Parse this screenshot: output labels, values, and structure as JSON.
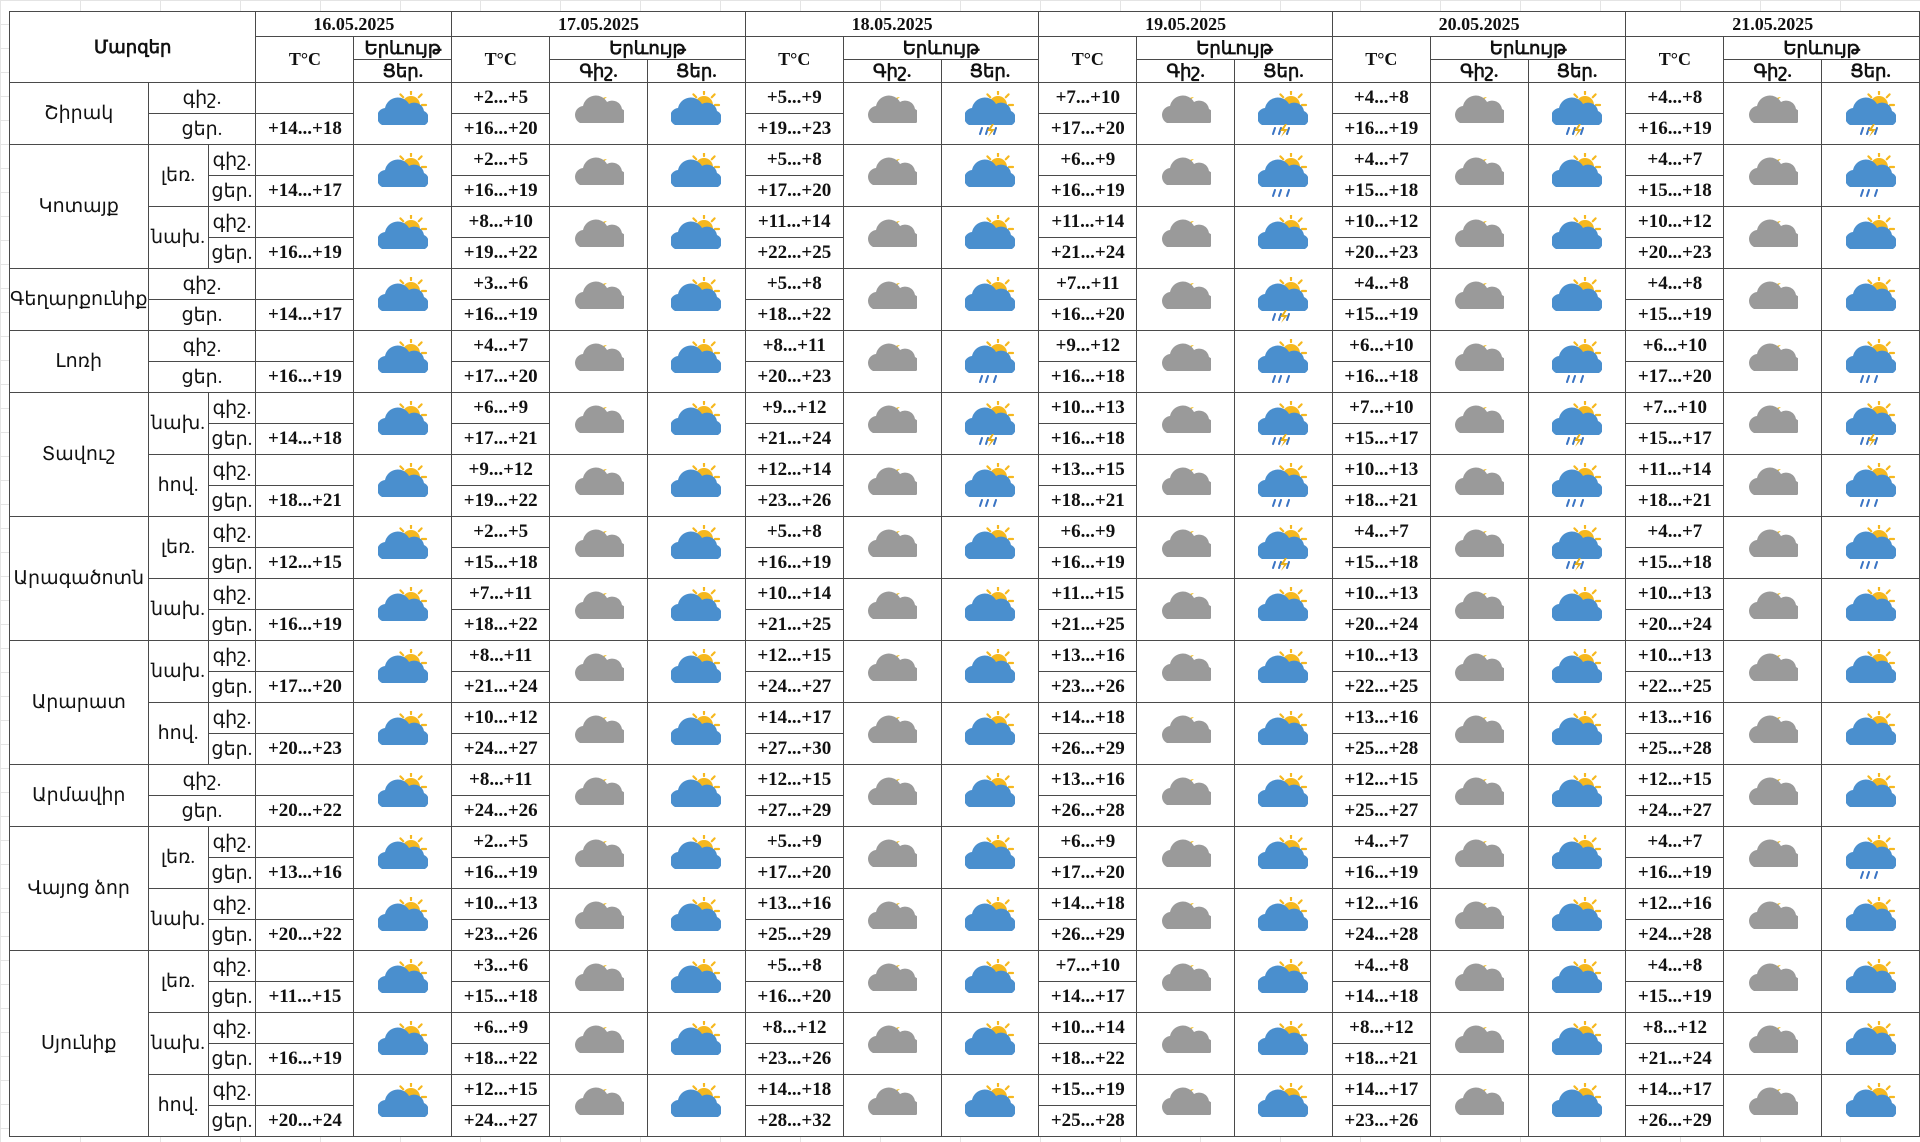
{
  "table": {
    "corner": "Մարզեր",
    "dates": [
      "16.05.2025",
      "17.05.2025",
      "18.05.2025",
      "19.05.2025",
      "20.05.2025",
      "21.05.2025"
    ],
    "temp_header": "T°C",
    "phen_header": "Երևույթ",
    "night_short": "Գիշ.",
    "day_short": "Ցեր.",
    "night_row": "գիշ.",
    "day_row": "ցեր."
  },
  "regions": [
    {
      "name": "Շիրակ",
      "zones": [
        {
          "zone": "",
          "temps": [
            [
              "",
              "+14...+18"
            ],
            [
              "+2...+5",
              "+16...+20"
            ],
            [
              "+5...+9",
              "+19...+23"
            ],
            [
              "+7...+10",
              "+17...+20"
            ],
            [
              "+4...+8",
              "+16...+19"
            ],
            [
              "+4...+8",
              "+16...+19"
            ]
          ],
          "wx": [
            "partly-cloudy-sun",
            "cloud-moon",
            "partly-cloudy-sun",
            "cloud-moon",
            "thunderstorm-sun",
            "cloud-moon",
            "thunderstorm-sun",
            "cloud-moon",
            "thunderstorm-sun",
            "cloud-moon",
            "thunderstorm-sun"
          ]
        }
      ]
    },
    {
      "name": "Կոտայք",
      "zones": [
        {
          "zone": "լեռ.",
          "temps": [
            [
              "",
              "+14...+17"
            ],
            [
              "+2...+5",
              "+16...+19"
            ],
            [
              "+5...+8",
              "+17...+20"
            ],
            [
              "+6...+9",
              "+16...+19"
            ],
            [
              "+4...+7",
              "+15...+18"
            ],
            [
              "+4...+7",
              "+15...+18"
            ]
          ],
          "wx": [
            "partly-cloudy-sun",
            "cloud-moon",
            "partly-cloudy-sun",
            "cloud-moon",
            "partly-cloudy-sun",
            "cloud-moon",
            "rain-sun",
            "cloud-moon",
            "partly-cloudy-sun",
            "cloud-moon",
            "rain-sun"
          ]
        },
        {
          "zone": "նախ.",
          "temps": [
            [
              "",
              "+16...+19"
            ],
            [
              "+8...+10",
              "+19...+22"
            ],
            [
              "+11...+14",
              "+22...+25"
            ],
            [
              "+11...+14",
              "+21...+24"
            ],
            [
              "+10...+12",
              "+20...+23"
            ],
            [
              "+10...+12",
              "+20...+23"
            ]
          ],
          "wx": [
            "partly-cloudy-sun",
            "cloud-moon",
            "partly-cloudy-sun",
            "cloud-moon",
            "partly-cloudy-sun",
            "cloud-moon",
            "partly-cloudy-sun",
            "cloud-moon",
            "partly-cloudy-sun",
            "cloud-moon",
            "partly-cloudy-sun"
          ]
        }
      ]
    },
    {
      "name": "Գեղարքունիք",
      "zones": [
        {
          "zone": "",
          "temps": [
            [
              "",
              "+14...+17"
            ],
            [
              "+3...+6",
              "+16...+19"
            ],
            [
              "+5...+8",
              "+18...+22"
            ],
            [
              "+7...+11",
              "+16...+20"
            ],
            [
              "+4...+8",
              "+15...+19"
            ],
            [
              "+4...+8",
              "+15...+19"
            ]
          ],
          "wx": [
            "partly-cloudy-sun",
            "cloud-moon",
            "partly-cloudy-sun",
            "cloud-moon",
            "partly-cloudy-sun",
            "cloud-moon",
            "thunderstorm-sun",
            "cloud-moon",
            "partly-cloudy-sun",
            "cloud-moon",
            "partly-cloudy-sun"
          ]
        }
      ]
    },
    {
      "name": "Լոռի",
      "zones": [
        {
          "zone": "",
          "temps": [
            [
              "",
              "+16...+19"
            ],
            [
              "+4...+7",
              "+17...+20"
            ],
            [
              "+8...+11",
              "+20...+23"
            ],
            [
              "+9...+12",
              "+16...+18"
            ],
            [
              "+6...+10",
              "+16...+18"
            ],
            [
              "+6...+10",
              "+17...+20"
            ]
          ],
          "wx": [
            "partly-cloudy-sun",
            "cloud-moon",
            "partly-cloudy-sun",
            "cloud-moon",
            "rain-sun",
            "cloud-moon",
            "rain-sun",
            "cloud-moon",
            "rain-sun",
            "cloud-moon",
            "rain-sun"
          ]
        }
      ]
    },
    {
      "name": "Տավուշ",
      "zones": [
        {
          "zone": "նախ.",
          "temps": [
            [
              "",
              "+14...+18"
            ],
            [
              "+6...+9",
              "+17...+21"
            ],
            [
              "+9...+12",
              "+21...+24"
            ],
            [
              "+10...+13",
              "+16...+18"
            ],
            [
              "+7...+10",
              "+15...+17"
            ],
            [
              "+7...+10",
              "+15...+17"
            ]
          ],
          "wx": [
            "partly-cloudy-sun",
            "cloud-moon",
            "partly-cloudy-sun",
            "cloud-moon",
            "thunderstorm-sun",
            "cloud-moon",
            "thunderstorm-sun",
            "cloud-moon",
            "thunderstorm-sun",
            "cloud-moon",
            "thunderstorm-sun"
          ]
        },
        {
          "zone": "հով.",
          "temps": [
            [
              "",
              "+18...+21"
            ],
            [
              "+9...+12",
              "+19...+22"
            ],
            [
              "+12...+14",
              "+23...+26"
            ],
            [
              "+13...+15",
              "+18...+21"
            ],
            [
              "+10...+13",
              "+18...+21"
            ],
            [
              "+11...+14",
              "+18...+21"
            ]
          ],
          "wx": [
            "partly-cloudy-sun",
            "cloud-moon",
            "partly-cloudy-sun",
            "cloud-moon",
            "rain-sun",
            "cloud-moon",
            "rain-sun",
            "cloud-moon",
            "rain-sun",
            "cloud-moon",
            "rain-sun"
          ]
        }
      ]
    },
    {
      "name": "Արագածոտն",
      "zones": [
        {
          "zone": "լեռ.",
          "temps": [
            [
              "",
              "+12...+15"
            ],
            [
              "+2...+5",
              "+15...+18"
            ],
            [
              "+5...+8",
              "+16...+19"
            ],
            [
              "+6...+9",
              "+16...+19"
            ],
            [
              "+4...+7",
              "+15...+18"
            ],
            [
              "+4...+7",
              "+15...+18"
            ]
          ],
          "wx": [
            "partly-cloudy-sun",
            "cloud-moon",
            "partly-cloudy-sun",
            "cloud-moon",
            "partly-cloudy-sun",
            "cloud-moon",
            "thunderstorm-sun",
            "cloud-moon",
            "thunderstorm-sun",
            "cloud-moon",
            "rain-sun"
          ]
        },
        {
          "zone": "նախ.",
          "temps": [
            [
              "",
              "+16...+19"
            ],
            [
              "+7...+11",
              "+18...+22"
            ],
            [
              "+10...+14",
              "+21...+25"
            ],
            [
              "+11...+15",
              "+21...+25"
            ],
            [
              "+10...+13",
              "+20...+24"
            ],
            [
              "+10...+13",
              "+20...+24"
            ]
          ],
          "wx": [
            "partly-cloudy-sun",
            "cloud-moon",
            "partly-cloudy-sun",
            "cloud-moon",
            "partly-cloudy-sun",
            "cloud-moon",
            "partly-cloudy-sun",
            "cloud-moon",
            "partly-cloudy-sun",
            "cloud-moon",
            "partly-cloudy-sun"
          ]
        }
      ]
    },
    {
      "name": "Արարատ",
      "zones": [
        {
          "zone": "նախ.",
          "temps": [
            [
              "",
              "+17...+20"
            ],
            [
              "+8...+11",
              "+21...+24"
            ],
            [
              "+12...+15",
              "+24...+27"
            ],
            [
              "+13...+16",
              "+23...+26"
            ],
            [
              "+10...+13",
              "+22...+25"
            ],
            [
              "+10...+13",
              "+22...+25"
            ]
          ],
          "wx": [
            "partly-cloudy-sun",
            "cloud-moon",
            "partly-cloudy-sun",
            "cloud-moon",
            "partly-cloudy-sun",
            "cloud-moon",
            "partly-cloudy-sun",
            "cloud-moon",
            "partly-cloudy-sun",
            "cloud-moon",
            "partly-cloudy-sun"
          ]
        },
        {
          "zone": "հով.",
          "temps": [
            [
              "",
              "+20...+23"
            ],
            [
              "+10...+12",
              "+24...+27"
            ],
            [
              "+14...+17",
              "+27...+30"
            ],
            [
              "+14...+18",
              "+26...+29"
            ],
            [
              "+13...+16",
              "+25...+28"
            ],
            [
              "+13...+16",
              "+25...+28"
            ]
          ],
          "wx": [
            "partly-cloudy-sun",
            "cloud-moon",
            "partly-cloudy-sun",
            "cloud-moon",
            "partly-cloudy-sun",
            "cloud-moon",
            "partly-cloudy-sun",
            "cloud-moon",
            "partly-cloudy-sun",
            "cloud-moon",
            "partly-cloudy-sun"
          ]
        }
      ]
    },
    {
      "name": "Արմավիր",
      "zones": [
        {
          "zone": "",
          "temps": [
            [
              "",
              "+20...+22"
            ],
            [
              "+8...+11",
              "+24...+26"
            ],
            [
              "+12...+15",
              "+27...+29"
            ],
            [
              "+13...+16",
              "+26...+28"
            ],
            [
              "+12...+15",
              "+25...+27"
            ],
            [
              "+12...+15",
              "+24...+27"
            ]
          ],
          "wx": [
            "partly-cloudy-sun",
            "cloud-moon",
            "partly-cloudy-sun",
            "cloud-moon",
            "partly-cloudy-sun",
            "cloud-moon",
            "partly-cloudy-sun",
            "cloud-moon",
            "partly-cloudy-sun",
            "cloud-moon",
            "partly-cloudy-sun"
          ]
        }
      ]
    },
    {
      "name": "Վայոց ձոր",
      "zones": [
        {
          "zone": "լեռ.",
          "temps": [
            [
              "",
              "+13...+16"
            ],
            [
              "+2...+5",
              "+16...+19"
            ],
            [
              "+5...+9",
              "+17...+20"
            ],
            [
              "+6...+9",
              "+17...+20"
            ],
            [
              "+4...+7",
              "+16...+19"
            ],
            [
              "+4...+7",
              "+16...+19"
            ]
          ],
          "wx": [
            "partly-cloudy-sun",
            "cloud-moon",
            "partly-cloudy-sun",
            "cloud-moon",
            "partly-cloudy-sun",
            "cloud-moon",
            "partly-cloudy-sun",
            "cloud-moon",
            "partly-cloudy-sun",
            "cloud-moon",
            "rain-sun"
          ]
        },
        {
          "zone": "նախ.",
          "temps": [
            [
              "",
              "+20...+22"
            ],
            [
              "+10...+13",
              "+23...+26"
            ],
            [
              "+13...+16",
              "+25...+29"
            ],
            [
              "+14...+18",
              "+26...+29"
            ],
            [
              "+12...+16",
              "+24...+28"
            ],
            [
              "+12...+16",
              "+24...+28"
            ]
          ],
          "wx": [
            "partly-cloudy-sun",
            "cloud-moon",
            "partly-cloudy-sun",
            "cloud-moon",
            "partly-cloudy-sun",
            "cloud-moon",
            "partly-cloudy-sun",
            "cloud-moon",
            "partly-cloudy-sun",
            "cloud-moon",
            "partly-cloudy-sun"
          ]
        }
      ]
    },
    {
      "name": "Սյունիք",
      "zones": [
        {
          "zone": "լեռ.",
          "temps": [
            [
              "",
              "+11...+15"
            ],
            [
              "+3...+6",
              "+15...+18"
            ],
            [
              "+5...+8",
              "+16...+20"
            ],
            [
              "+7...+10",
              "+14...+17"
            ],
            [
              "+4...+8",
              "+14...+18"
            ],
            [
              "+4...+8",
              "+15...+19"
            ]
          ],
          "wx": [
            "partly-cloudy-sun",
            "cloud-moon",
            "partly-cloudy-sun",
            "cloud-moon",
            "partly-cloudy-sun",
            "cloud-moon",
            "partly-cloudy-sun",
            "cloud-moon",
            "partly-cloudy-sun",
            "cloud-moon",
            "partly-cloudy-sun"
          ]
        },
        {
          "zone": "նախ.",
          "temps": [
            [
              "",
              "+16...+19"
            ],
            [
              "+6...+9",
              "+18...+22"
            ],
            [
              "+8...+12",
              "+23...+26"
            ],
            [
              "+10...+14",
              "+18...+22"
            ],
            [
              "+8...+12",
              "+18...+21"
            ],
            [
              "+8...+12",
              "+21...+24"
            ]
          ],
          "wx": [
            "partly-cloudy-sun",
            "cloud-moon",
            "partly-cloudy-sun",
            "cloud-moon",
            "partly-cloudy-sun",
            "cloud-moon",
            "partly-cloudy-sun",
            "cloud-moon",
            "partly-cloudy-sun",
            "cloud-moon",
            "partly-cloudy-sun"
          ]
        },
        {
          "zone": "հով.",
          "temps": [
            [
              "",
              "+20...+24"
            ],
            [
              "+12...+15",
              "+24...+27"
            ],
            [
              "+14...+18",
              "+28...+32"
            ],
            [
              "+15...+19",
              "+25...+28"
            ],
            [
              "+14...+17",
              "+23...+26"
            ],
            [
              "+14...+17",
              "+26...+29"
            ]
          ],
          "wx": [
            "partly-cloudy-sun",
            "cloud-moon",
            "partly-cloudy-sun",
            "cloud-moon",
            "partly-cloudy-sun",
            "cloud-moon",
            "partly-cloudy-sun",
            "cloud-moon",
            "partly-cloudy-sun",
            "cloud-moon",
            "partly-cloudy-sun"
          ]
        }
      ]
    }
  ],
  "colors": {
    "cloud_gray": "#9a9a9a",
    "cloud_blue": "#4a8fce",
    "sun": "#f6b81e",
    "moon": "#f2c12e",
    "rain": "#3a74c4",
    "lightning": "#e8b01a",
    "border": "#4a4a4a",
    "grid": "#e4e4e4"
  }
}
